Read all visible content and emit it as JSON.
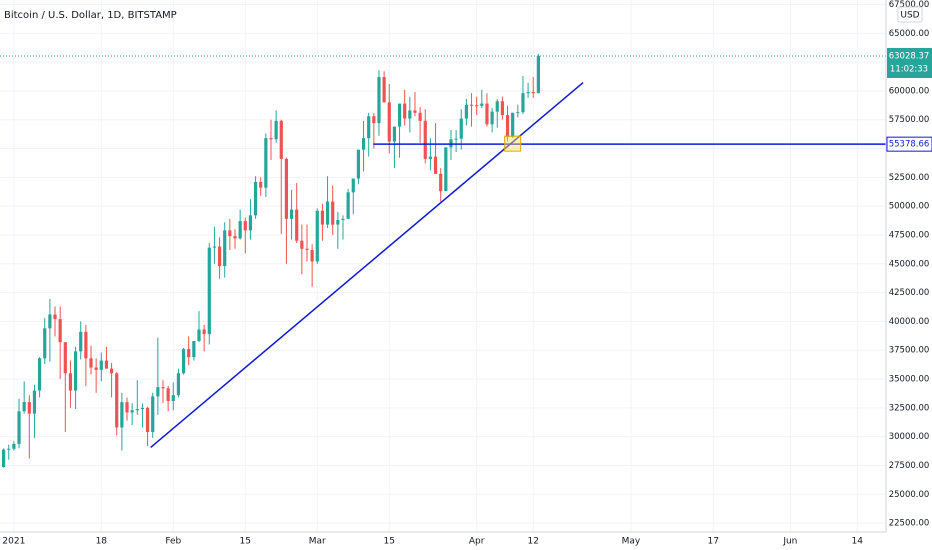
{
  "chart_data": {
    "type": "candlestick",
    "title": "Bitcoin / U.S. Dollar, 1D, BITSTAMP",
    "currency": "USD",
    "countdown": "11:02:33",
    "up_color": "#26a69a",
    "down_color": "#ef5350",
    "drawing_color": "#0d1bd6",
    "grid": true,
    "candles": [
      [
        27360,
        28990,
        27320,
        28880
      ],
      [
        28880,
        29300,
        28000,
        28950
      ],
      [
        28950,
        29600,
        28800,
        29370
      ],
      [
        29370,
        33300,
        29000,
        32200
      ],
      [
        32200,
        34800,
        32000,
        33000
      ],
      [
        33000,
        33600,
        28100,
        32000
      ],
      [
        32000,
        34500,
        29900,
        34000
      ],
      [
        34000,
        36900,
        33400,
        36800
      ],
      [
        36800,
        40300,
        36300,
        39400
      ],
      [
        39400,
        41950,
        36500,
        40600
      ],
      [
        40600,
        41300,
        38700,
        40200
      ],
      [
        40200,
        41300,
        35000,
        38200
      ],
      [
        38200,
        38200,
        30400,
        35500
      ],
      [
        35500,
        36600,
        32500,
        34000
      ],
      [
        34000,
        37800,
        32400,
        37400
      ],
      [
        37400,
        40000,
        36700,
        39100
      ],
      [
        39100,
        39700,
        34400,
        36800
      ],
      [
        36800,
        37900,
        35400,
        36000
      ],
      [
        36000,
        36800,
        33800,
        35800
      ],
      [
        35800,
        37300,
        34800,
        36600
      ],
      [
        36600,
        37800,
        35900,
        35900
      ],
      [
        35900,
        36400,
        33400,
        35500
      ],
      [
        35500,
        35600,
        30100,
        30800
      ],
      [
        30800,
        33800,
        28800,
        33000
      ],
      [
        33000,
        33400,
        31400,
        32100
      ],
      [
        32100,
        32900,
        31000,
        32300
      ],
      [
        32300,
        34900,
        31900,
        32400
      ],
      [
        32400,
        32900,
        30800,
        32500
      ],
      [
        32500,
        32600,
        29200,
        30400
      ],
      [
        30400,
        33800,
        29900,
        33500
      ],
      [
        33500,
        38600,
        31900,
        34300
      ],
      [
        34300,
        34900,
        32900,
        34200
      ],
      [
        34200,
        34400,
        32200,
        33100
      ],
      [
        33100,
        34700,
        32300,
        33600
      ],
      [
        33600,
        35900,
        33400,
        35500
      ],
      [
        35500,
        37700,
        35400,
        37600
      ],
      [
        37600,
        38700,
        36200,
        36900
      ],
      [
        36900,
        38300,
        36600,
        38300
      ],
      [
        38300,
        40900,
        38200,
        39300
      ],
      [
        39300,
        39700,
        37400,
        38900
      ],
      [
        38900,
        46800,
        38000,
        46400
      ],
      [
        46400,
        48200,
        45000,
        46500
      ],
      [
        46500,
        47300,
        43700,
        44800
      ],
      [
        44800,
        48600,
        43800,
        47900
      ],
      [
        47900,
        48900,
        46200,
        47400
      ],
      [
        47400,
        48000,
        46300,
        47200
      ],
      [
        47200,
        49700,
        47100,
        48700
      ],
      [
        48700,
        49000,
        45900,
        47900
      ],
      [
        47900,
        50600,
        47100,
        49200
      ],
      [
        49200,
        52600,
        48900,
        52100
      ],
      [
        52100,
        52500,
        50900,
        51600
      ],
      [
        51600,
        56300,
        50800,
        55900
      ],
      [
        55900,
        57500,
        54000,
        55800
      ],
      [
        55800,
        58300,
        55500,
        57400
      ],
      [
        57400,
        57500,
        47600,
        54100
      ],
      [
        54100,
        54200,
        45000,
        48900
      ],
      [
        48900,
        51400,
        47100,
        49700
      ],
      [
        49700,
        52000,
        46800,
        47000
      ],
      [
        47000,
        48400,
        44100,
        46300
      ],
      [
        46300,
        48400,
        45200,
        46200
      ],
      [
        46200,
        46700,
        43000,
        45200
      ],
      [
        45200,
        49800,
        45000,
        49600
      ],
      [
        49600,
        50200,
        47000,
        48400
      ],
      [
        48400,
        52600,
        48100,
        50400
      ],
      [
        50400,
        51800,
        47500,
        48400
      ],
      [
        48400,
        49500,
        46300,
        48800
      ],
      [
        48800,
        49200,
        47100,
        48900
      ],
      [
        48900,
        51500,
        48900,
        51200
      ],
      [
        51200,
        52400,
        49300,
        52400
      ],
      [
        52400,
        54900,
        51900,
        54900
      ],
      [
        54900,
        57400,
        53000,
        55900
      ],
      [
        55900,
        58100,
        54300,
        57800
      ],
      [
        57800,
        58100,
        55000,
        57200
      ],
      [
        57200,
        61800,
        56100,
        61200
      ],
      [
        61200,
        61700,
        59000,
        59000
      ],
      [
        59000,
        60600,
        54600,
        55600
      ],
      [
        55600,
        56900,
        53300,
        56900
      ],
      [
        56900,
        58900,
        54200,
        58900
      ],
      [
        58900,
        60100,
        57000,
        57600
      ],
      [
        57600,
        59500,
        56400,
        58300
      ],
      [
        58300,
        59900,
        57800,
        58100
      ],
      [
        58100,
        58600,
        55500,
        57400
      ],
      [
        57400,
        58400,
        53700,
        54100
      ],
      [
        54100,
        55900,
        53100,
        54300
      ],
      [
        54300,
        57200,
        52800,
        52800
      ],
      [
        52800,
        53300,
        50400,
        51300
      ],
      [
        51300,
        55100,
        51300,
        55100
      ],
      [
        55100,
        56600,
        54000,
        55800
      ],
      [
        55800,
        56600,
        54700,
        55850
      ],
      [
        55850,
        58400,
        54900,
        57600
      ],
      [
        57600,
        59300,
        57000,
        58800
      ],
      [
        58800,
        59800,
        56900,
        58750
      ],
      [
        58750,
        59500,
        57900,
        58700
      ],
      [
        58700,
        60100,
        58500,
        58900
      ],
      [
        58900,
        59800,
        56900,
        57100
      ],
      [
        57100,
        58500,
        56400,
        58200
      ],
      [
        58200,
        59300,
        56800,
        59100
      ],
      [
        59100,
        59500,
        57500,
        57900
      ],
      [
        57900,
        58700,
        55600,
        56000
      ],
      [
        56000,
        58100,
        55900,
        58100
      ],
      [
        58100,
        58800,
        57700,
        58150
      ],
      [
        58150,
        61300,
        58000,
        59800
      ],
      [
        59800,
        60700,
        59400,
        59900
      ],
      [
        59900,
        61200,
        59400,
        59800
      ],
      [
        59800,
        63200,
        59800,
        63028.37
      ]
    ],
    "xlim": [
      -0.7,
      171.6
    ],
    "xticks": [
      {
        "value": 2,
        "label": "2021"
      },
      {
        "value": 19,
        "label": "18"
      },
      {
        "value": 33,
        "label": "Feb"
      },
      {
        "value": 47,
        "label": "15"
      },
      {
        "value": 61,
        "label": "Mar"
      },
      {
        "value": 75,
        "label": "15"
      },
      {
        "value": 92,
        "label": "Apr"
      },
      {
        "value": 103,
        "label": "12"
      },
      {
        "value": 122,
        "label": "May"
      },
      {
        "value": 138,
        "label": "17"
      },
      {
        "value": 153,
        "label": "Jun"
      },
      {
        "value": 166,
        "label": "14"
      }
    ],
    "ylim": [
      21730,
      67885
    ],
    "yticks": [
      {
        "value": 22500,
        "label": "22500.00"
      },
      {
        "value": 25000,
        "label": "25000.00"
      },
      {
        "value": 27500,
        "label": "27500.00"
      },
      {
        "value": 30000,
        "label": "30000.00"
      },
      {
        "value": 32500,
        "label": "32500.00"
      },
      {
        "value": 35000,
        "label": "35000.00"
      },
      {
        "value": 37500,
        "label": "37500.00"
      },
      {
        "value": 40000,
        "label": "40000.00"
      },
      {
        "value": 42500,
        "label": "42500.00"
      },
      {
        "value": 45000,
        "label": "45000.00"
      },
      {
        "value": 47500,
        "label": "47500.00"
      },
      {
        "value": 50000,
        "label": "50000.00"
      },
      {
        "value": 52500,
        "label": "52500.00"
      },
      {
        "value": 55000,
        "label": "55000.00"
      },
      {
        "value": 57500,
        "label": "57500.00"
      },
      {
        "value": 60000,
        "label": "60000.00"
      },
      {
        "value": 62500,
        "label": "62500.00"
      },
      {
        "value": 65000,
        "label": "65000.00"
      },
      {
        "value": 67500,
        "label": "67500.00"
      }
    ],
    "trendline": {
      "x": [
        28.6,
        112.7
      ],
      "y": [
        29070,
        60720
      ]
    },
    "hline": {
      "x": 71.9,
      "y": 55378.66
    }
  }
}
